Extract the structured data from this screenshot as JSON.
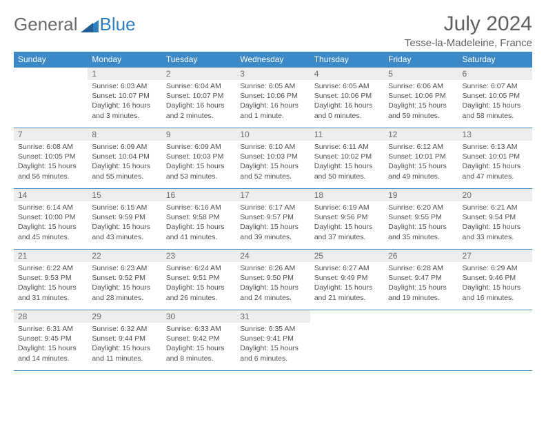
{
  "brand": {
    "name_a": "General",
    "name_b": "Blue"
  },
  "title": "July 2024",
  "location": "Tesse-la-Madeleine, France",
  "colors": {
    "header_bg": "#3b89c7",
    "header_text": "#ffffff",
    "border": "#3b89c7",
    "daynum_bg": "#ededed",
    "text": "#505050",
    "page_bg": "#ffffff"
  },
  "fonts": {
    "body_pt": 10.5,
    "daynum_pt": 12,
    "header_pt": 12,
    "title_pt": 30,
    "loc_pt": 15
  },
  "day_names": [
    "Sunday",
    "Monday",
    "Tuesday",
    "Wednesday",
    "Thursday",
    "Friday",
    "Saturday"
  ],
  "weeks": [
    [
      {
        "n": "",
        "sr": "",
        "ss": "",
        "dl": "",
        "empty": true
      },
      {
        "n": "1",
        "sr": "Sunrise: 6:03 AM",
        "ss": "Sunset: 10:07 PM",
        "dl": "Daylight: 16 hours and 3 minutes."
      },
      {
        "n": "2",
        "sr": "Sunrise: 6:04 AM",
        "ss": "Sunset: 10:07 PM",
        "dl": "Daylight: 16 hours and 2 minutes."
      },
      {
        "n": "3",
        "sr": "Sunrise: 6:05 AM",
        "ss": "Sunset: 10:06 PM",
        "dl": "Daylight: 16 hours and 1 minute."
      },
      {
        "n": "4",
        "sr": "Sunrise: 6:05 AM",
        "ss": "Sunset: 10:06 PM",
        "dl": "Daylight: 16 hours and 0 minutes."
      },
      {
        "n": "5",
        "sr": "Sunrise: 6:06 AM",
        "ss": "Sunset: 10:06 PM",
        "dl": "Daylight: 15 hours and 59 minutes."
      },
      {
        "n": "6",
        "sr": "Sunrise: 6:07 AM",
        "ss": "Sunset: 10:05 PM",
        "dl": "Daylight: 15 hours and 58 minutes."
      }
    ],
    [
      {
        "n": "7",
        "sr": "Sunrise: 6:08 AM",
        "ss": "Sunset: 10:05 PM",
        "dl": "Daylight: 15 hours and 56 minutes."
      },
      {
        "n": "8",
        "sr": "Sunrise: 6:09 AM",
        "ss": "Sunset: 10:04 PM",
        "dl": "Daylight: 15 hours and 55 minutes."
      },
      {
        "n": "9",
        "sr": "Sunrise: 6:09 AM",
        "ss": "Sunset: 10:03 PM",
        "dl": "Daylight: 15 hours and 53 minutes."
      },
      {
        "n": "10",
        "sr": "Sunrise: 6:10 AM",
        "ss": "Sunset: 10:03 PM",
        "dl": "Daylight: 15 hours and 52 minutes."
      },
      {
        "n": "11",
        "sr": "Sunrise: 6:11 AM",
        "ss": "Sunset: 10:02 PM",
        "dl": "Daylight: 15 hours and 50 minutes."
      },
      {
        "n": "12",
        "sr": "Sunrise: 6:12 AM",
        "ss": "Sunset: 10:01 PM",
        "dl": "Daylight: 15 hours and 49 minutes."
      },
      {
        "n": "13",
        "sr": "Sunrise: 6:13 AM",
        "ss": "Sunset: 10:01 PM",
        "dl": "Daylight: 15 hours and 47 minutes."
      }
    ],
    [
      {
        "n": "14",
        "sr": "Sunrise: 6:14 AM",
        "ss": "Sunset: 10:00 PM",
        "dl": "Daylight: 15 hours and 45 minutes."
      },
      {
        "n": "15",
        "sr": "Sunrise: 6:15 AM",
        "ss": "Sunset: 9:59 PM",
        "dl": "Daylight: 15 hours and 43 minutes."
      },
      {
        "n": "16",
        "sr": "Sunrise: 6:16 AM",
        "ss": "Sunset: 9:58 PM",
        "dl": "Daylight: 15 hours and 41 minutes."
      },
      {
        "n": "17",
        "sr": "Sunrise: 6:17 AM",
        "ss": "Sunset: 9:57 PM",
        "dl": "Daylight: 15 hours and 39 minutes."
      },
      {
        "n": "18",
        "sr": "Sunrise: 6:19 AM",
        "ss": "Sunset: 9:56 PM",
        "dl": "Daylight: 15 hours and 37 minutes."
      },
      {
        "n": "19",
        "sr": "Sunrise: 6:20 AM",
        "ss": "Sunset: 9:55 PM",
        "dl": "Daylight: 15 hours and 35 minutes."
      },
      {
        "n": "20",
        "sr": "Sunrise: 6:21 AM",
        "ss": "Sunset: 9:54 PM",
        "dl": "Daylight: 15 hours and 33 minutes."
      }
    ],
    [
      {
        "n": "21",
        "sr": "Sunrise: 6:22 AM",
        "ss": "Sunset: 9:53 PM",
        "dl": "Daylight: 15 hours and 31 minutes."
      },
      {
        "n": "22",
        "sr": "Sunrise: 6:23 AM",
        "ss": "Sunset: 9:52 PM",
        "dl": "Daylight: 15 hours and 28 minutes."
      },
      {
        "n": "23",
        "sr": "Sunrise: 6:24 AM",
        "ss": "Sunset: 9:51 PM",
        "dl": "Daylight: 15 hours and 26 minutes."
      },
      {
        "n": "24",
        "sr": "Sunrise: 6:26 AM",
        "ss": "Sunset: 9:50 PM",
        "dl": "Daylight: 15 hours and 24 minutes."
      },
      {
        "n": "25",
        "sr": "Sunrise: 6:27 AM",
        "ss": "Sunset: 9:49 PM",
        "dl": "Daylight: 15 hours and 21 minutes."
      },
      {
        "n": "26",
        "sr": "Sunrise: 6:28 AM",
        "ss": "Sunset: 9:47 PM",
        "dl": "Daylight: 15 hours and 19 minutes."
      },
      {
        "n": "27",
        "sr": "Sunrise: 6:29 AM",
        "ss": "Sunset: 9:46 PM",
        "dl": "Daylight: 15 hours and 16 minutes."
      }
    ],
    [
      {
        "n": "28",
        "sr": "Sunrise: 6:31 AM",
        "ss": "Sunset: 9:45 PM",
        "dl": "Daylight: 15 hours and 14 minutes."
      },
      {
        "n": "29",
        "sr": "Sunrise: 6:32 AM",
        "ss": "Sunset: 9:44 PM",
        "dl": "Daylight: 15 hours and 11 minutes."
      },
      {
        "n": "30",
        "sr": "Sunrise: 6:33 AM",
        "ss": "Sunset: 9:42 PM",
        "dl": "Daylight: 15 hours and 8 minutes."
      },
      {
        "n": "31",
        "sr": "Sunrise: 6:35 AM",
        "ss": "Sunset: 9:41 PM",
        "dl": "Daylight: 15 hours and 6 minutes."
      },
      {
        "n": "",
        "sr": "",
        "ss": "",
        "dl": "",
        "empty": true
      },
      {
        "n": "",
        "sr": "",
        "ss": "",
        "dl": "",
        "empty": true
      },
      {
        "n": "",
        "sr": "",
        "ss": "",
        "dl": "",
        "empty": true
      }
    ]
  ]
}
